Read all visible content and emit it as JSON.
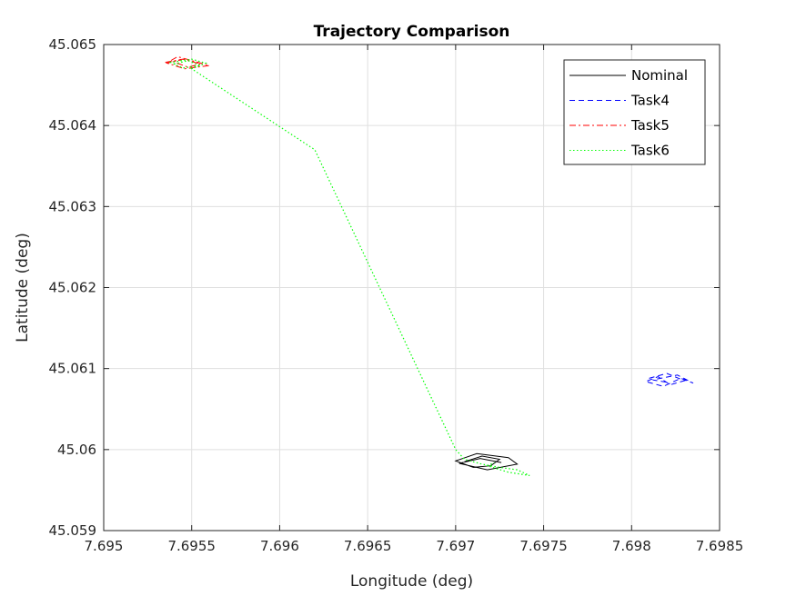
{
  "chart_data": {
    "type": "line",
    "title": "Trajectory Comparison",
    "xlabel": "Longitude (deg)",
    "ylabel": "Latitude (deg)",
    "xlim": [
      7.695,
      7.6985
    ],
    "ylim": [
      45.059,
      45.065
    ],
    "x_ticks": [
      "7.695",
      "7.6955",
      "7.696",
      "7.6965",
      "7.697",
      "7.6975",
      "7.698",
      "7.6985"
    ],
    "y_ticks": [
      "45.059",
      "45.06",
      "45.061",
      "45.062",
      "45.063",
      "45.064",
      "45.065"
    ],
    "grid": true,
    "legend_position": "top-right",
    "colors": {
      "Nominal": "#000000",
      "Task4": "#0000ff",
      "Task5": "#ff0000",
      "Task6": "#00ff00"
    },
    "series": [
      {
        "name": "Nominal",
        "style": "solid",
        "x": [
          7.69705,
          7.69715,
          7.69725,
          7.6972,
          7.6971,
          7.697,
          7.69712,
          7.6973,
          7.69735,
          7.69718,
          7.69702,
          7.69714,
          7.69726
        ],
        "y": [
          45.05985,
          45.05992,
          45.05988,
          45.0598,
          45.05978,
          45.05986,
          45.05995,
          45.0599,
          45.05982,
          45.05975,
          45.05983,
          45.05989,
          45.05984
        ]
      },
      {
        "name": "Task4",
        "style": "dashed",
        "x": [
          7.6981,
          7.6982,
          7.6983,
          7.69822,
          7.69815,
          7.69808,
          7.69818,
          7.69828,
          7.69835,
          7.69826,
          7.69812,
          7.6982
        ],
        "y": [
          45.06088,
          45.06094,
          45.06085,
          45.0608,
          45.0609,
          45.06084,
          45.06078,
          45.06088,
          45.06082,
          45.06092,
          45.06086,
          45.06083
        ]
      },
      {
        "name": "Task5",
        "style": "dashdot",
        "x": [
          7.69535,
          7.69545,
          7.69555,
          7.69548,
          7.69538,
          7.69542,
          7.69552,
          7.6956,
          7.69546,
          7.69536,
          7.69544
        ],
        "y": [
          45.06478,
          45.06482,
          45.06476,
          45.06472,
          45.0648,
          45.06485,
          45.06479,
          45.06474,
          45.0647,
          45.06477,
          45.06481
        ]
      },
      {
        "name": "Task6",
        "style": "dotted",
        "x": [
          7.6954,
          7.69548,
          7.69555,
          7.69545,
          7.69538,
          7.6955,
          7.69558,
          7.6955,
          7.6962,
          7.697,
          7.69705,
          7.69715,
          7.69725,
          7.69735,
          7.69742,
          7.6973,
          7.69718,
          7.69722
        ],
        "y": [
          45.06476,
          45.0648,
          45.06474,
          45.06471,
          45.06478,
          45.06482,
          45.06477,
          45.0647,
          45.0637,
          45.06,
          45.05988,
          45.05982,
          45.05978,
          45.05975,
          45.05968,
          45.05972,
          45.0598,
          45.05984
        ]
      }
    ]
  }
}
